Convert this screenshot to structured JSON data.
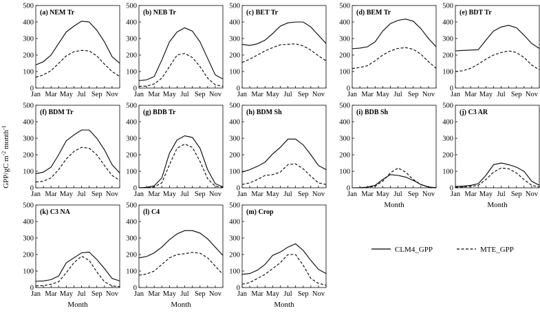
{
  "figure": {
    "ylabel": "GPP/gC m",
    "ylabel_sup1": "-2",
    "ylabel_mid": " month",
    "ylabel_sup2": "-1",
    "xlabel": "Month",
    "legend": {
      "solid": "CLM4_GPP",
      "dashed": "MTE_GPP"
    }
  },
  "chart_data": {
    "type": "line",
    "x_tick_labels": [
      "Jan",
      "Mar",
      "May",
      "Jul",
      "Sep",
      "Nov"
    ],
    "x_months": [
      1,
      2,
      3,
      4,
      5,
      6,
      7,
      8,
      9,
      10,
      11,
      12
    ],
    "y_tick_labels": [
      "0",
      "100",
      "200",
      "300",
      "400",
      "500"
    ],
    "ylim": [
      0,
      500
    ],
    "xlim": [
      1,
      12
    ],
    "grid": false,
    "legend_position": "bottom-right",
    "panels": [
      {
        "label": "(a) NEM Tr",
        "series": [
          {
            "name": "CLM4_GPP",
            "values": [
              140,
              160,
              200,
              270,
              340,
              375,
              405,
              400,
              350,
              280,
              190,
              150
            ]
          },
          {
            "name": "MTE_GPP",
            "values": [
              65,
              80,
              105,
              150,
              195,
              220,
              228,
              225,
              195,
              145,
              100,
              70
            ]
          }
        ]
      },
      {
        "label": "(b) NEB Tr",
        "series": [
          {
            "name": "CLM4_GPP",
            "values": [
              45,
              50,
              70,
              170,
              280,
              340,
              365,
              345,
              280,
              180,
              80,
              55
            ]
          },
          {
            "name": "MTE_GPP",
            "values": [
              10,
              12,
              25,
              60,
              130,
              200,
              210,
              185,
              130,
              60,
              20,
              10
            ]
          }
        ]
      },
      {
        "label": "(c) BET Tr",
        "series": [
          {
            "name": "CLM4_GPP",
            "values": [
              265,
              258,
              268,
              290,
              330,
              375,
              395,
              400,
              400,
              370,
              320,
              270
            ]
          },
          {
            "name": "MTE_GPP",
            "values": [
              155,
              175,
              200,
              225,
              245,
              262,
              265,
              268,
              255,
              230,
              195,
              165
            ]
          }
        ]
      },
      {
        "label": "(d) BEM Tr",
        "series": [
          {
            "name": "CLM4_GPP",
            "values": [
              238,
              242,
              250,
              280,
              345,
              390,
              410,
              418,
              405,
              360,
              300,
              250
            ]
          },
          {
            "name": "MTE_GPP",
            "values": [
              118,
              125,
              135,
              165,
              200,
              225,
              240,
              245,
              235,
              205,
              160,
              120
            ]
          }
        ]
      },
      {
        "label": "(e) BDT Tr",
        "series": [
          {
            "name": "CLM4_GPP",
            "values": [
              225,
              228,
              230,
              232,
              290,
              345,
              370,
              380,
              365,
              320,
              270,
              240
            ]
          },
          {
            "name": "MTE_GPP",
            "values": [
              100,
              105,
              120,
              145,
              175,
              200,
              215,
              225,
              215,
              185,
              140,
              110
            ]
          }
        ]
      },
      {
        "label": "(f) BDM Tr",
        "series": [
          {
            "name": "CLM4_GPP",
            "values": [
              85,
              95,
              125,
              200,
              285,
              320,
              350,
              350,
              300,
              230,
              140,
              90
            ]
          },
          {
            "name": "MTE_GPP",
            "values": [
              35,
              40,
              60,
              110,
              175,
              220,
              245,
              240,
              200,
              135,
              75,
              45
            ]
          }
        ]
      },
      {
        "label": "(g) BDB Tr",
        "series": [
          {
            "name": "CLM4_GPP",
            "values": [
              0,
              3,
              12,
              60,
              210,
              290,
              315,
              305,
              240,
              110,
              25,
              5
            ]
          },
          {
            "name": "MTE_GPP",
            "values": [
              0,
              1,
              5,
              30,
              140,
              240,
              265,
              245,
              160,
              55,
              10,
              2
            ]
          }
        ]
      },
      {
        "label": "(h) BDM Sh",
        "series": [
          {
            "name": "CLM4_GPP",
            "values": [
              95,
              110,
              130,
              155,
              205,
              245,
              295,
              295,
              260,
              200,
              135,
              110
            ]
          },
          {
            "name": "MTE_GPP",
            "values": [
              20,
              30,
              50,
              75,
              80,
              95,
              140,
              145,
              115,
              70,
              30,
              20
            ]
          }
        ]
      },
      {
        "label": "(i) BDB Sh",
        "series": [
          {
            "name": "CLM4_GPP",
            "values": [
              0,
              1,
              4,
              15,
              50,
              80,
              75,
              65,
              45,
              20,
              5,
              1
            ]
          },
          {
            "name": "MTE_GPP",
            "values": [
              0,
              0,
              2,
              10,
              40,
              90,
              120,
              95,
              50,
              20,
              3,
              0
            ]
          }
        ]
      },
      {
        "label": "(j) C3 AR",
        "series": [
          {
            "name": "CLM4_GPP",
            "values": [
              8,
              10,
              15,
              25,
              75,
              140,
              150,
              140,
              125,
              100,
              40,
              15
            ]
          },
          {
            "name": "MTE_GPP",
            "values": [
              3,
              5,
              8,
              15,
              50,
              95,
              120,
              115,
              90,
              50,
              15,
              5
            ]
          }
        ]
      },
      {
        "label": "(k) C3 NA",
        "series": [
          {
            "name": "CLM4_GPP",
            "values": [
              38,
              40,
              48,
              70,
              150,
              180,
              210,
              215,
              170,
              115,
              55,
              40
            ]
          },
          {
            "name": "MTE_GPP",
            "values": [
              10,
              12,
              20,
              35,
              90,
              150,
              190,
              165,
              95,
              35,
              10,
              5
            ]
          }
        ]
      },
      {
        "label": "(l) C4",
        "series": [
          {
            "name": "CLM4_GPP",
            "values": [
              180,
              188,
              210,
              245,
              290,
              325,
              345,
              345,
              330,
              295,
              245,
              195
            ]
          },
          {
            "name": "MTE_GPP",
            "values": [
              75,
              82,
              100,
              140,
              180,
              200,
              205,
              213,
              208,
              180,
              130,
              80
            ]
          }
        ]
      },
      {
        "label": "(m) Crop",
        "series": [
          {
            "name": "CLM4_GPP",
            "values": [
              80,
              85,
              105,
              140,
              195,
              215,
              245,
              265,
              225,
              165,
              110,
              85
            ]
          },
          {
            "name": "MTE_GPP",
            "values": [
              20,
              30,
              55,
              80,
              115,
              150,
              200,
              200,
              135,
              55,
              25,
              15
            ]
          }
        ]
      }
    ]
  }
}
